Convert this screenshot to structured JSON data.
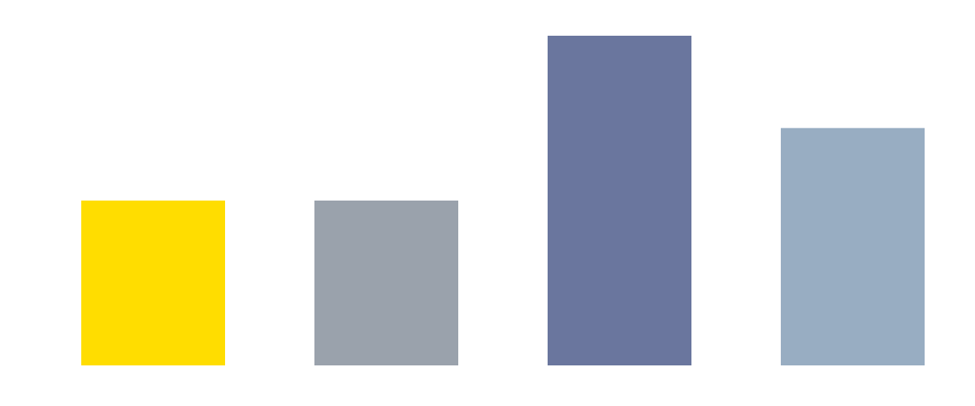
{
  "chart_data": {
    "type": "bar",
    "values": [
      50,
      50,
      100,
      72
    ],
    "colors": [
      "#ffdd00",
      "#9aa2ac",
      "#6a769e",
      "#98adc2"
    ],
    "ylim": [
      0,
      100
    ],
    "grid": false
  }
}
